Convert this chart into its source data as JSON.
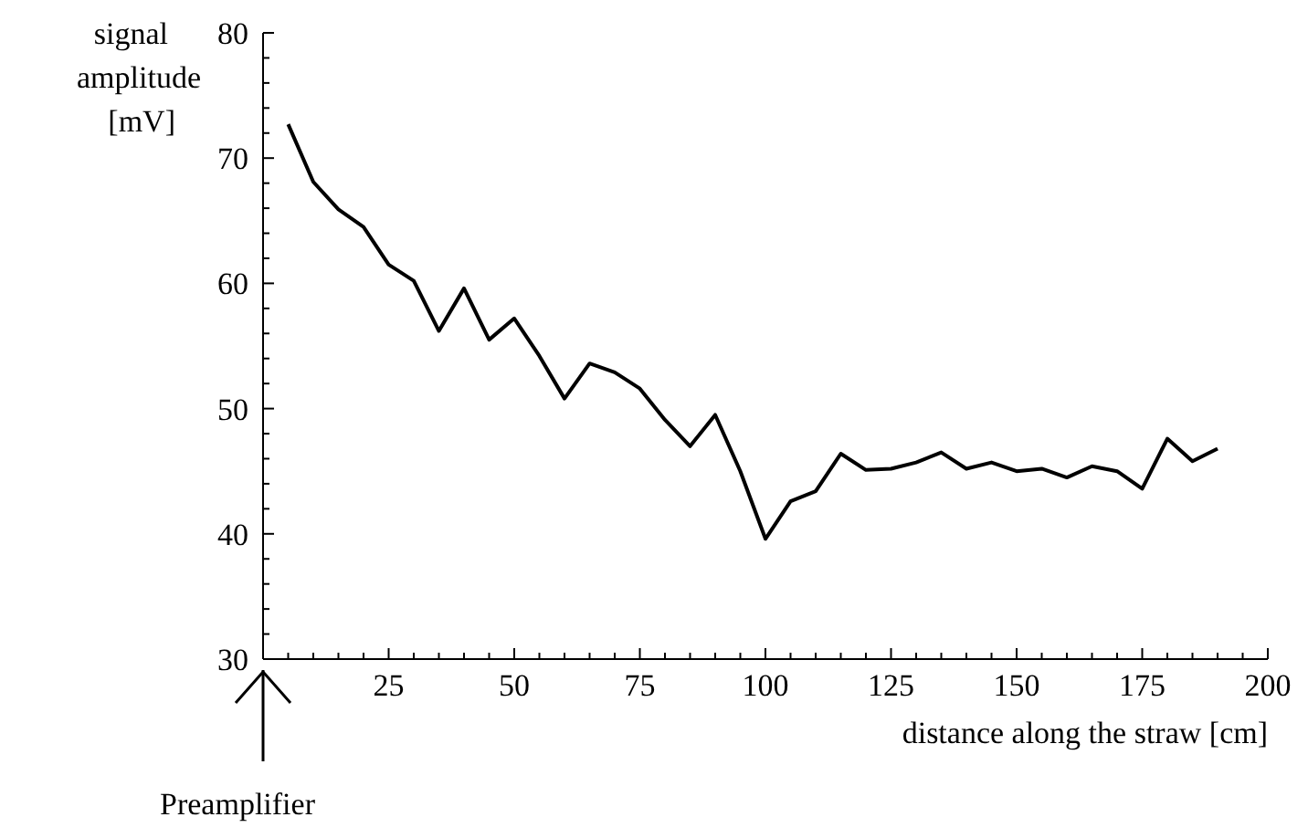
{
  "chart_data": {
    "type": "line",
    "ylabel": "signal\namplitude\n[mV]",
    "xlabel": "distance along the straw [cm]",
    "annotations": [
      "Preamplifier"
    ],
    "x": [
      5,
      10,
      15,
      20,
      25,
      30,
      35,
      40,
      45,
      50,
      55,
      60,
      65,
      70,
      75,
      80,
      85,
      90,
      95,
      100,
      105,
      110,
      115,
      120,
      125,
      130,
      135,
      140,
      145,
      150,
      155,
      160,
      165,
      170,
      175,
      180,
      185,
      190
    ],
    "series": [
      {
        "color": "#000000",
        "values": [
          72.7,
          68.1,
          65.9,
          64.5,
          61.5,
          60.2,
          56.2,
          59.6,
          55.5,
          57.2,
          54.2,
          50.8,
          53.6,
          52.9,
          51.6,
          49.1,
          47.0,
          49.5,
          45.0,
          39.6,
          42.6,
          43.4,
          46.4,
          45.1,
          45.2,
          45.7,
          46.5,
          45.2,
          45.7,
          45.0,
          45.2,
          44.5,
          45.4,
          45.0,
          43.6,
          47.6,
          45.8,
          46.8
        ]
      }
    ],
    "xlim": [
      0,
      200
    ],
    "ylim": [
      30,
      80
    ],
    "xticks": [
      {
        "value": 5,
        "label": null
      },
      {
        "value": 10,
        "label": null
      },
      {
        "value": 15,
        "label": null
      },
      {
        "value": 20,
        "label": null
      },
      25,
      {
        "value": 30,
        "label": null
      },
      {
        "value": 35,
        "label": null
      },
      {
        "value": 40,
        "label": null
      },
      {
        "value": 45,
        "label": null
      },
      50,
      {
        "value": 55,
        "label": null
      },
      {
        "value": 60,
        "label": null
      },
      {
        "value": 65,
        "label": null
      },
      {
        "value": 70,
        "label": null
      },
      75,
      {
        "value": 80,
        "label": null
      },
      {
        "value": 85,
        "label": null
      },
      {
        "value": 90,
        "label": null
      },
      {
        "value": 95,
        "label": null
      },
      100,
      {
        "value": 105,
        "label": null
      },
      {
        "value": 110,
        "label": null
      },
      {
        "value": 115,
        "label": null
      },
      {
        "value": 120,
        "label": null
      },
      125,
      {
        "value": 130,
        "label": null
      },
      {
        "value": 135,
        "label": null
      },
      {
        "value": 140,
        "label": null
      },
      {
        "value": 145,
        "label": null
      },
      150,
      {
        "value": 155,
        "label": null
      },
      {
        "value": 160,
        "label": null
      },
      {
        "value": 165,
        "label": null
      },
      {
        "value": 170,
        "label": null
      },
      175,
      {
        "value": 180,
        "label": null
      },
      {
        "value": 185,
        "label": null
      },
      {
        "value": 190,
        "label": null
      },
      {
        "value": 195,
        "label": null
      },
      200
    ],
    "yticks": [
      30,
      {
        "value": 32,
        "label": null
      },
      {
        "value": 34,
        "label": null
      },
      {
        "value": 36,
        "label": null
      },
      {
        "value": 38,
        "label": null
      },
      40,
      {
        "value": 42,
        "label": null
      },
      {
        "value": 44,
        "label": null
      },
      {
        "value": 46,
        "label": null
      },
      {
        "value": 48,
        "label": null
      },
      50,
      {
        "value": 52,
        "label": null
      },
      {
        "value": 54,
        "label": null
      },
      {
        "value": 56,
        "label": null
      },
      {
        "value": 58,
        "label": null
      },
      60,
      {
        "value": 62,
        "label": null
      },
      {
        "value": 64,
        "label": null
      },
      {
        "value": 66,
        "label": null
      },
      {
        "value": 68,
        "label": null
      },
      70,
      {
        "value": 72,
        "label": null
      },
      {
        "value": 74,
        "label": null
      },
      {
        "value": 76,
        "label": null
      },
      {
        "value": 78,
        "label": null
      },
      80
    ],
    "grid": false,
    "marker": "none",
    "line_style": "solid"
  }
}
